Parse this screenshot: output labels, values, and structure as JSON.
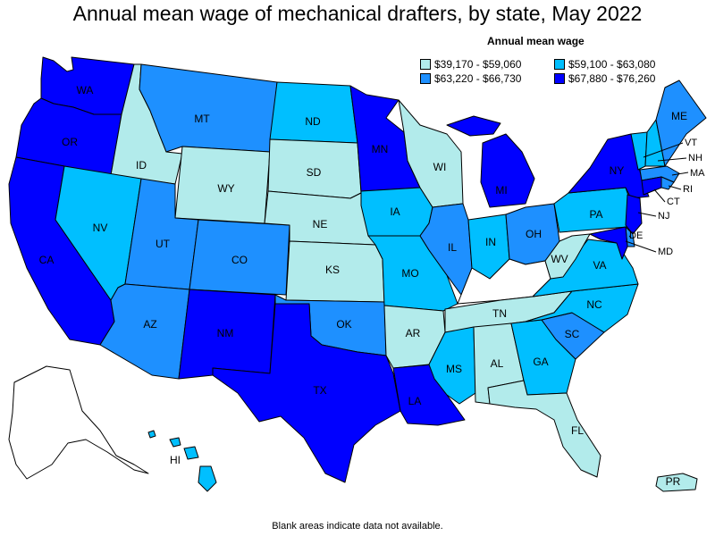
{
  "title": "Annual mean wage of mechanical drafters, by state, May 2022",
  "legend": {
    "title": "Annual mean wage",
    "items": [
      {
        "range": "$39,170 - $59,060",
        "color": "#b2ebeb"
      },
      {
        "range": "$59,100 - $63,080",
        "color": "#00bfff"
      },
      {
        "range": "$63,220 - $66,730",
        "color": "#1e90ff"
      },
      {
        "range": "$67,880 - $76,260",
        "color": "#0000ff"
      }
    ]
  },
  "footnote": "Blank areas indicate data not available.",
  "states": {
    "WA": {
      "label": "WA",
      "tier": 3
    },
    "OR": {
      "label": "OR",
      "tier": 3
    },
    "CA": {
      "label": "CA",
      "tier": 3
    },
    "ID": {
      "label": "ID",
      "tier": 0
    },
    "NV": {
      "label": "NV",
      "tier": 1
    },
    "MT": {
      "label": "MT",
      "tier": 2
    },
    "WY": {
      "label": "WY",
      "tier": 0
    },
    "UT": {
      "label": "UT",
      "tier": 2
    },
    "AZ": {
      "label": "AZ",
      "tier": 2
    },
    "CO": {
      "label": "CO",
      "tier": 2
    },
    "NM": {
      "label": "NM",
      "tier": 3
    },
    "ND": {
      "label": "ND",
      "tier": 1
    },
    "SD": {
      "label": "SD",
      "tier": 0
    },
    "NE": {
      "label": "NE",
      "tier": 0
    },
    "KS": {
      "label": "KS",
      "tier": 0
    },
    "OK": {
      "label": "OK",
      "tier": 2
    },
    "TX": {
      "label": "TX",
      "tier": 3
    },
    "MN": {
      "label": "MN",
      "tier": 3
    },
    "IA": {
      "label": "IA",
      "tier": 1
    },
    "MO": {
      "label": "MO",
      "tier": 1
    },
    "AR": {
      "label": "AR",
      "tier": 0
    },
    "LA": {
      "label": "LA",
      "tier": 3
    },
    "WI": {
      "label": "WI",
      "tier": 0
    },
    "IL": {
      "label": "IL",
      "tier": 2
    },
    "MI": {
      "label": "MI",
      "tier": 3
    },
    "IN": {
      "label": "IN",
      "tier": 1
    },
    "OH": {
      "label": "OH",
      "tier": 2
    },
    "KY": {
      "label": "",
      "tier": -1
    },
    "TN": {
      "label": "TN",
      "tier": 0
    },
    "MS": {
      "label": "MS",
      "tier": 1
    },
    "AL": {
      "label": "AL",
      "tier": 0
    },
    "GA": {
      "label": "GA",
      "tier": 1
    },
    "FL": {
      "label": "FL",
      "tier": 0
    },
    "SC": {
      "label": "SC",
      "tier": 2
    },
    "NC": {
      "label": "NC",
      "tier": 1
    },
    "VA": {
      "label": "VA",
      "tier": 1
    },
    "WV": {
      "label": "WV",
      "tier": 0
    },
    "PA": {
      "label": "PA",
      "tier": 1
    },
    "NY": {
      "label": "NY",
      "tier": 3
    },
    "VT": {
      "label": "VT",
      "tier": 1
    },
    "NH": {
      "label": "NH",
      "tier": 1
    },
    "ME": {
      "label": "ME",
      "tier": 2
    },
    "MA": {
      "label": "MA",
      "tier": 2
    },
    "RI": {
      "label": "RI",
      "tier": 2
    },
    "CT": {
      "label": "CT",
      "tier": 3
    },
    "NJ": {
      "label": "NJ",
      "tier": 3
    },
    "DE": {
      "label": "DE",
      "tier": 2
    },
    "MD": {
      "label": "MD",
      "tier": 3
    },
    "AK": {
      "label": "",
      "tier": -1
    },
    "HI": {
      "label": "HI",
      "tier": 1
    },
    "PR": {
      "label": "PR",
      "tier": 0
    }
  }
}
